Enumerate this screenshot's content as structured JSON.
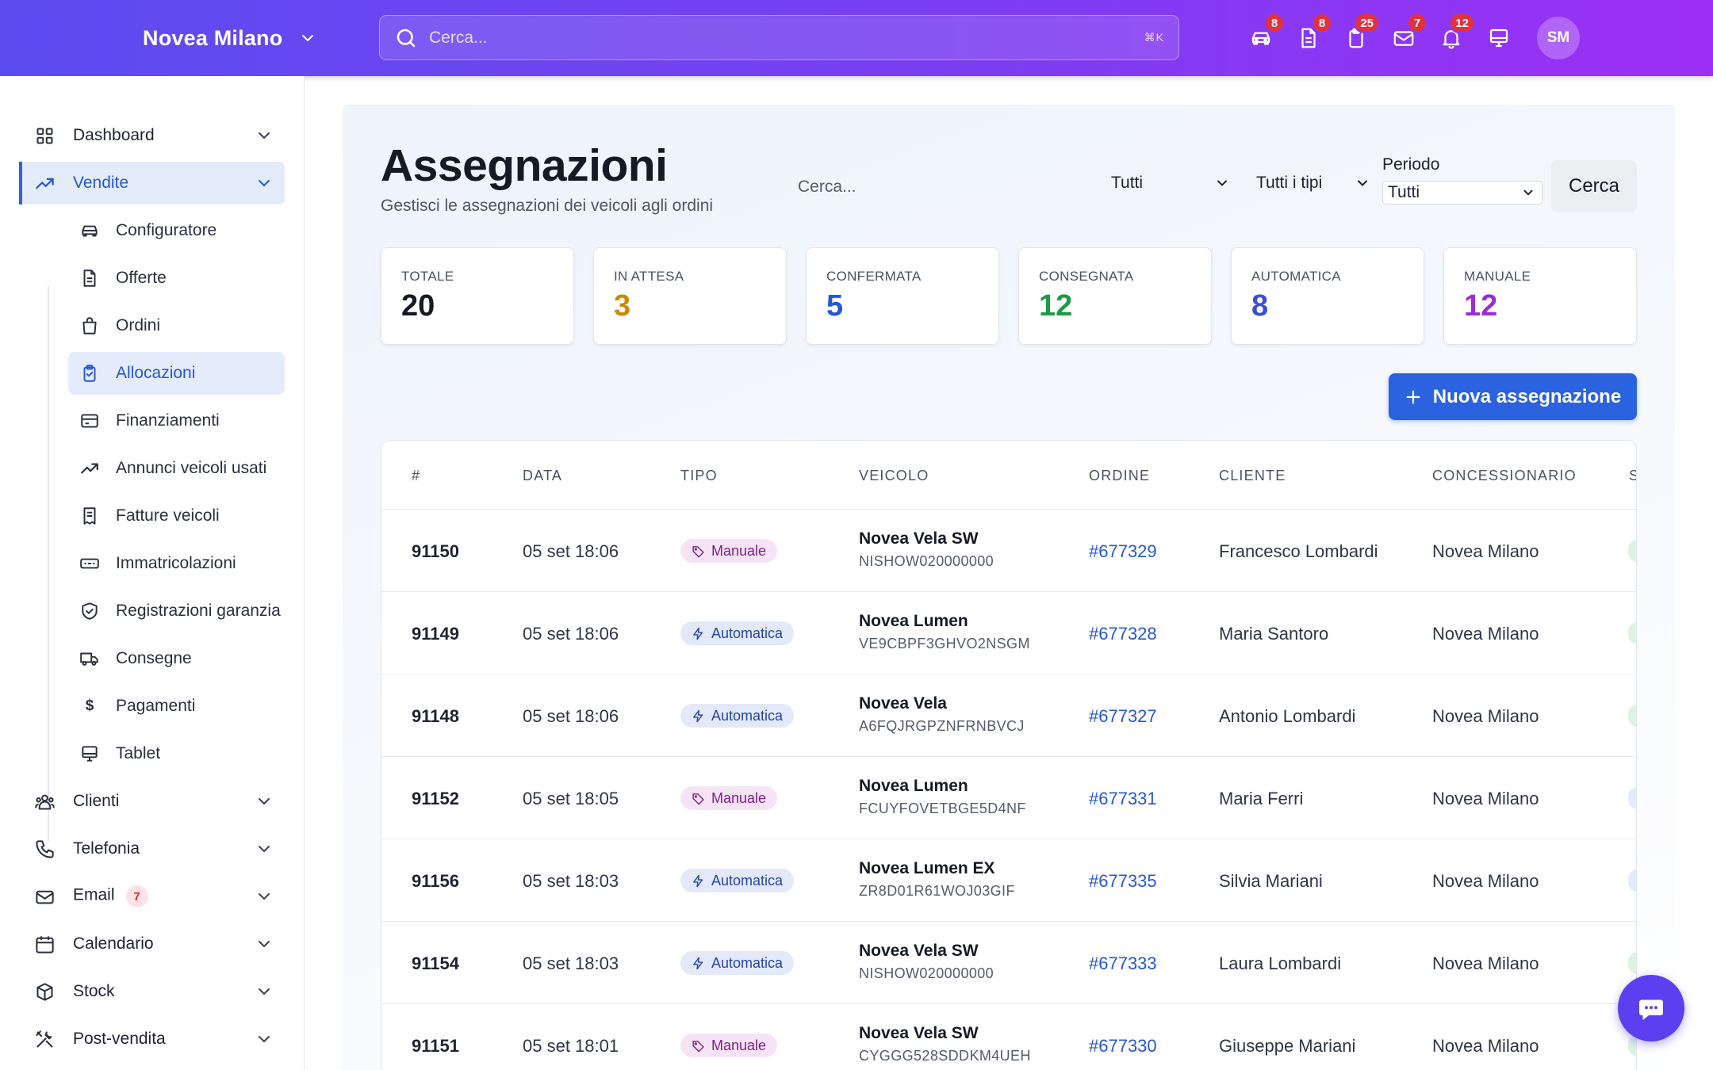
{
  "header": {
    "brand": "Novea Milano",
    "search_placeholder": "Cerca...",
    "shortcut": "⌘K",
    "icons": [
      {
        "name": "car-icon",
        "badge": "8"
      },
      {
        "name": "document-icon",
        "badge": "8"
      },
      {
        "name": "clipboard-icon",
        "badge": "25"
      },
      {
        "name": "mail-icon",
        "badge": "7"
      },
      {
        "name": "bell-icon",
        "badge": "12"
      },
      {
        "name": "monitor-icon",
        "badge": ""
      }
    ],
    "avatar": "SM"
  },
  "sidebar": {
    "items": [
      {
        "label": "Dashboard"
      },
      {
        "label": "Vendite"
      },
      {
        "label": "Clienti"
      },
      {
        "label": "Telefonia"
      },
      {
        "label": "Email",
        "badge": "7"
      },
      {
        "label": "Calendario"
      },
      {
        "label": "Stock"
      },
      {
        "label": "Post-vendita"
      }
    ],
    "subitems": [
      {
        "label": "Configuratore"
      },
      {
        "label": "Offerte"
      },
      {
        "label": "Ordini"
      },
      {
        "label": "Allocazioni"
      },
      {
        "label": "Finanziamenti"
      },
      {
        "label": "Annunci veicoli usati"
      },
      {
        "label": "Fatture veicoli"
      },
      {
        "label": "Immatricolazioni"
      },
      {
        "label": "Registrazioni garanzia"
      },
      {
        "label": "Consegne"
      },
      {
        "label": "Pagamenti",
        "glyph": "$"
      },
      {
        "label": "Tablet"
      }
    ]
  },
  "page": {
    "title": "Assegnazioni",
    "subtitle": "Gestisci le assegnazioni dei veicoli agli ordini",
    "filter_search_placeholder": "Cerca...",
    "status_filter": "Tutti",
    "type_filter": "Tutti i tipi",
    "period_label": "Periodo",
    "period_value": "Tutti",
    "search_button": "Cerca",
    "new_button": "Nuova assegnazione"
  },
  "stats": [
    {
      "label": "TOTALE",
      "value": "20",
      "color": "#151a24"
    },
    {
      "label": "IN ATTESA",
      "value": "3",
      "color": "#c98a0a"
    },
    {
      "label": "CONFERMATA",
      "value": "5",
      "color": "#2557d6"
    },
    {
      "label": "CONSEGNATA",
      "value": "12",
      "color": "#1c9b45"
    },
    {
      "label": "AUTOMATICA",
      "value": "8",
      "color": "#3b4fd4"
    },
    {
      "label": "MANUALE",
      "value": "12",
      "color": "#9a2ed6"
    }
  ],
  "table": {
    "headers": [
      "#",
      "DATA",
      "TIPO",
      "VEICOLO",
      "ORDINE",
      "CLIENTE",
      "CONCESSIONARIO",
      "S"
    ],
    "rows": [
      {
        "id": "91150",
        "date": "05 set 18:06",
        "type": "Manuale",
        "vehicle": "Novea Vela SW",
        "vin": "NISHOW020000000",
        "order": "#677329",
        "client": "Francesco Lombardi",
        "dealer": "Novea Milano",
        "status_color": "#dcf3e2"
      },
      {
        "id": "91149",
        "date": "05 set 18:06",
        "type": "Automatica",
        "vehicle": "Novea Lumen",
        "vin": "VE9CBPF3GHVO2NSGM",
        "order": "#677328",
        "client": "Maria Santoro",
        "dealer": "Novea Milano",
        "status_color": "#dcf3e2"
      },
      {
        "id": "91148",
        "date": "05 set 18:06",
        "type": "Automatica",
        "vehicle": "Novea Vela",
        "vin": "A6FQJRGPZNFRNBVCJ",
        "order": "#677327",
        "client": "Antonio Lombardi",
        "dealer": "Novea Milano",
        "status_color": "#dcf3e2"
      },
      {
        "id": "91152",
        "date": "05 set 18:05",
        "type": "Manuale",
        "vehicle": "Novea Lumen",
        "vin": "FCUYFOVETBGE5D4NF",
        "order": "#677331",
        "client": "Maria Ferri",
        "dealer": "Novea Milano",
        "status_color": "#e3eaf8"
      },
      {
        "id": "91156",
        "date": "05 set 18:03",
        "type": "Automatica",
        "vehicle": "Novea Lumen EX",
        "vin": "ZR8D01R61WOJ03GIF",
        "order": "#677335",
        "client": "Silvia Mariani",
        "dealer": "Novea Milano",
        "status_color": "#e3eaf8"
      },
      {
        "id": "91154",
        "date": "05 set 18:03",
        "type": "Automatica",
        "vehicle": "Novea Vela SW",
        "vin": "NISHOW020000000",
        "order": "#677333",
        "client": "Laura Lombardi",
        "dealer": "Novea Milano",
        "status_color": "#dcf3e2"
      },
      {
        "id": "91151",
        "date": "05 set 18:01",
        "type": "Manuale",
        "vehicle": "Novea Vela SW",
        "vin": "CYGGG528SDDKM4UEH",
        "order": "#677330",
        "client": "Giuseppe Mariani",
        "dealer": "Novea Milano",
        "status_color": "#dcf3e2"
      }
    ]
  }
}
